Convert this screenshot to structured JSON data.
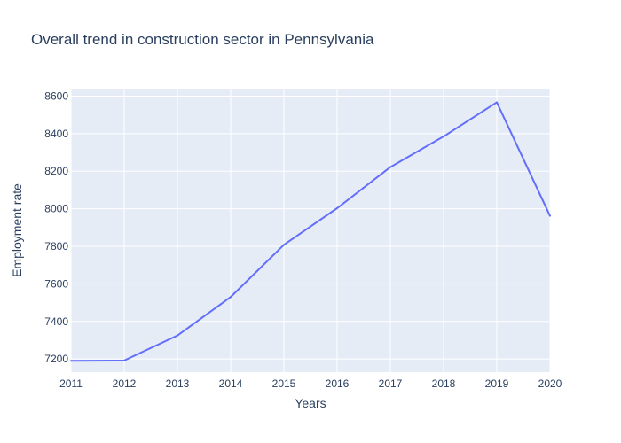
{
  "chart_data": {
    "type": "line",
    "title": "Overall trend in construction sector in Pennsylvania",
    "xlabel": "Years",
    "ylabel": "Employment rate",
    "x": [
      2011,
      2012,
      2013,
      2014,
      2015,
      2016,
      2017,
      2018,
      2019,
      2020
    ],
    "series": [
      {
        "values": [
          7190,
          7192,
          7325,
          7530,
          7808,
          8003,
          8222,
          8385,
          8567,
          7962
        ]
      }
    ],
    "xlim": [
      2011,
      2020
    ],
    "ylim": [
      7130,
      8640
    ],
    "x_ticks": [
      "2011",
      "2012",
      "2013",
      "2014",
      "2015",
      "2016",
      "2017",
      "2018",
      "2019",
      "2020"
    ],
    "y_ticks": [
      "7200",
      "7400",
      "7600",
      "7800",
      "8000",
      "8200",
      "8400",
      "8600"
    ],
    "grid": true,
    "colors": {
      "line": "#636efa",
      "plot_background": "#e5ecf6",
      "grid": "#ffffff",
      "text": "#2a3f5f"
    }
  }
}
